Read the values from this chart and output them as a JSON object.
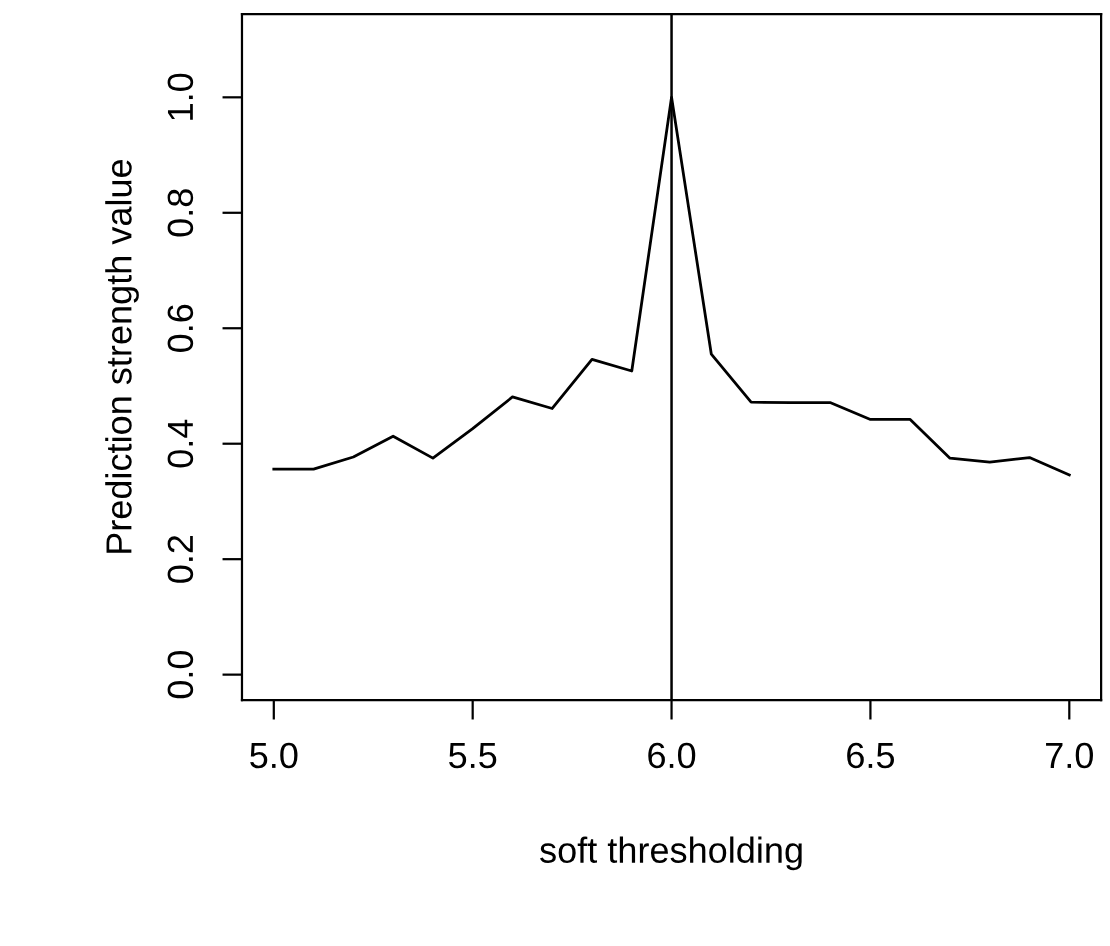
{
  "chart_data": {
    "type": "line",
    "xlabel": "soft thresholding",
    "ylabel": "Prediction strength value",
    "x": [
      5.0,
      5.1,
      5.2,
      5.3,
      5.4,
      5.5,
      5.6,
      5.7,
      5.8,
      5.9,
      6.0,
      6.1,
      6.2,
      6.3,
      6.4,
      6.5,
      6.6,
      6.7,
      6.8,
      6.9,
      7.0
    ],
    "series": [
      {
        "color": "#000000",
        "values": [
          0.356,
          0.356,
          0.377,
          0.413,
          0.375,
          0.426,
          0.481,
          0.461,
          0.546,
          0.526,
          1.0,
          0.555,
          0.472,
          0.471,
          0.471,
          0.442,
          0.442,
          0.375,
          0.368,
          0.376,
          0.346
        ]
      }
    ],
    "xlim": [
      4.92,
      7.08
    ],
    "ylim": [
      -0.044,
      1.144
    ],
    "xticks": [
      {
        "value": 5.0,
        "label": "5.0"
      },
      {
        "value": 5.5,
        "label": "5.5"
      },
      {
        "value": 6.0,
        "label": "6.0"
      },
      {
        "value": 6.5,
        "label": "6.5"
      },
      {
        "value": 7.0,
        "label": "7.0"
      }
    ],
    "yticks": [
      {
        "value": 0.0,
        "label": "0.0"
      },
      {
        "value": 0.2,
        "label": "0.2"
      },
      {
        "value": 0.4,
        "label": "0.4"
      },
      {
        "value": 0.6,
        "label": "0.6"
      },
      {
        "value": 0.8,
        "label": "0.8"
      },
      {
        "value": 1.0,
        "label": "1.0"
      }
    ],
    "ref_lines": [
      {
        "axis": "x",
        "value": 6.0,
        "color": "#000000"
      }
    ],
    "grid": false,
    "legend": false,
    "marker": "none",
    "line_style": "solid"
  }
}
